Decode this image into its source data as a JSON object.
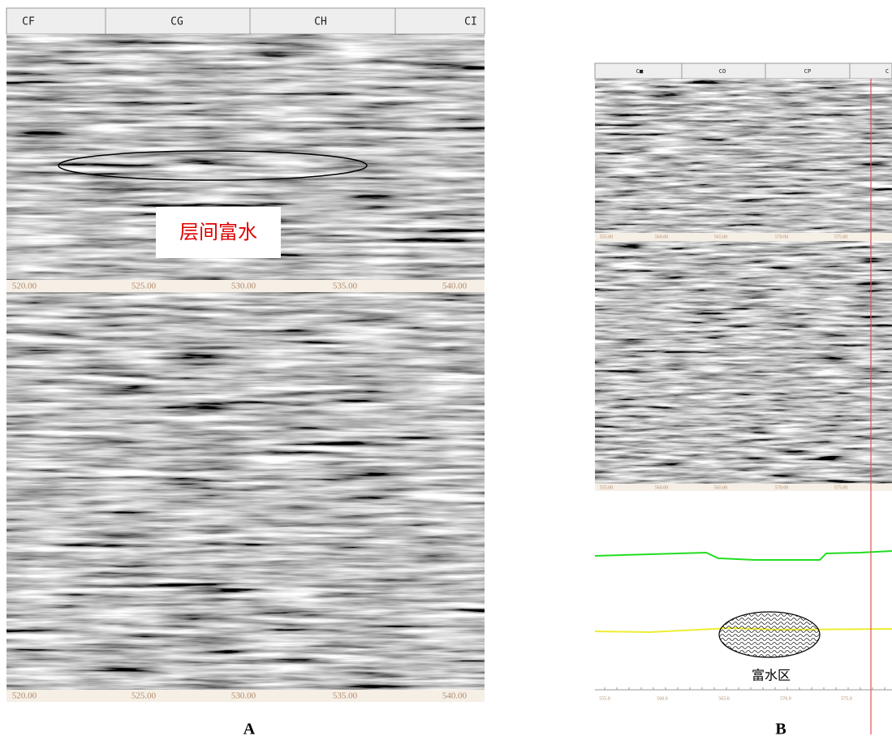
{
  "panel_a": {
    "header_labels": [
      "CF",
      "CG",
      "CH",
      "CI"
    ],
    "upper_axis_labels": [
      "520.00",
      "525.00",
      "530.00",
      "535.00",
      "540.00"
    ],
    "lower_axis_labels": [
      "520.00",
      "525.00",
      "530.00",
      "535.00",
      "540.00"
    ],
    "annotation": "层间富水",
    "caption": "A"
  },
  "panel_b": {
    "header_labels": [
      "C■",
      "CO",
      "CP",
      "C"
    ],
    "upper_axis_labels": [
      "555.00",
      "560.00",
      "565.00",
      "570.00",
      "575.00"
    ],
    "lower_axis_labels": [
      "555.00",
      "560.00",
      "565.00",
      "570.00",
      "575.00"
    ],
    "profile_axis_labels": [
      "555.0",
      "560.0",
      "565.0",
      "570.0",
      "575.0"
    ],
    "zone_label": "富水区",
    "caption": "B"
  }
}
